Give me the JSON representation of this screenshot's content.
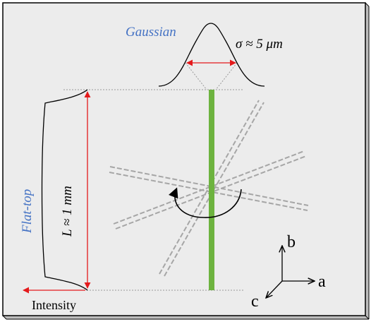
{
  "labels": {
    "gaussian": "Gaussian",
    "sigma": "σ ≈ 5 μm",
    "flat_top": "Flat-top",
    "length": "L ≈ 1 mm",
    "intensity": "Intensity",
    "axis_a": "a",
    "axis_b": "b",
    "axis_c": "c"
  },
  "colors": {
    "background": "#ececec",
    "border": "#000000",
    "laser_line": "#6db33f",
    "dashed_lines": "#a6a6a6",
    "red_arrows": "#e41a1c",
    "blue_label": "#4472c4",
    "dotted_guides": "#9a9a9a"
  },
  "icons": {
    "rotation": "rotation-arrow-icon",
    "axes": "crystal-axes-icon"
  }
}
